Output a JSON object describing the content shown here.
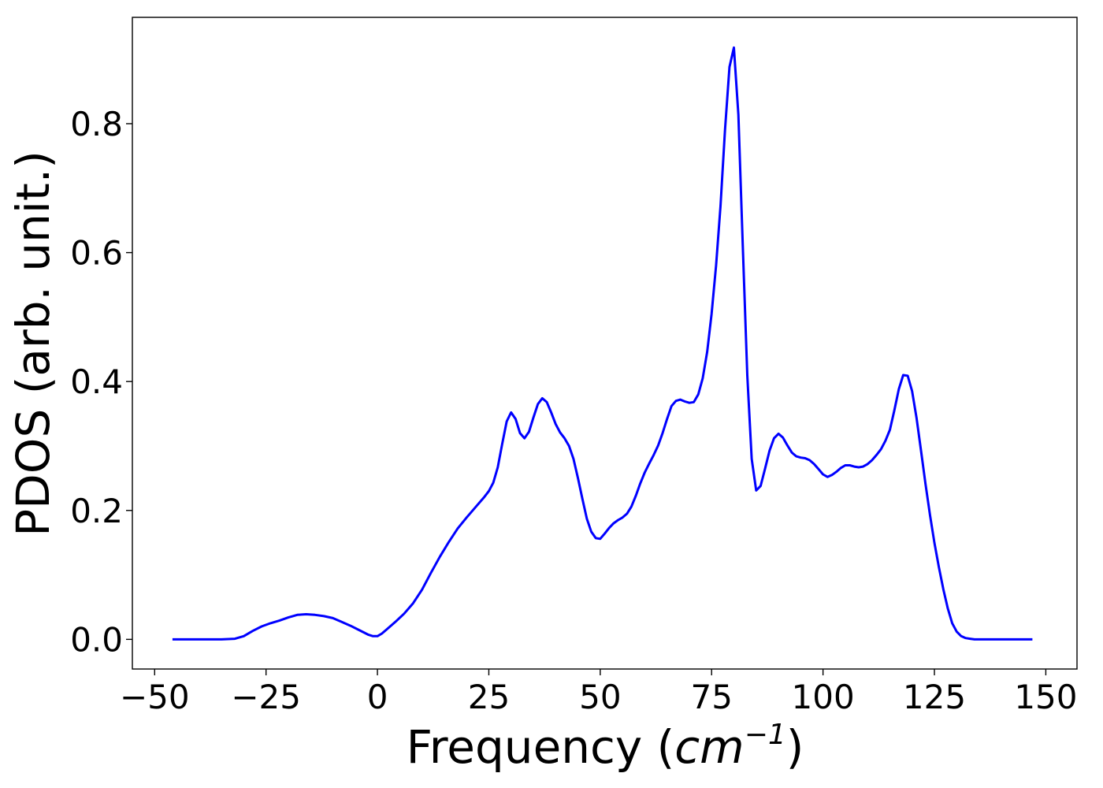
{
  "chart_data": {
    "type": "line",
    "title": "",
    "xlabel": "Frequency (",
    "xlabel_math": "cm",
    "xlabel_sup": "−1",
    "xlabel_end": ")",
    "ylabel": "PDOS (arb. unit.)",
    "xlim": [
      -55,
      157
    ],
    "ylim": [
      -0.046,
      0.965
    ],
    "xticks": [
      -50,
      -25,
      0,
      25,
      50,
      75,
      100,
      125,
      150
    ],
    "xtick_labels": [
      "−50",
      "−25",
      "0",
      "25",
      "50",
      "75",
      "100",
      "125",
      "150"
    ],
    "yticks": [
      0.0,
      0.2,
      0.4,
      0.6,
      0.8
    ],
    "ytick_labels": [
      "0.0",
      "0.2",
      "0.4",
      "0.6",
      "0.8"
    ],
    "grid": false,
    "series": [
      {
        "color": "#0000ff",
        "x": [
          -46,
          -40,
          -35,
          -32,
          -30,
          -28,
          -26,
          -24,
          -22,
          -20,
          -18,
          -16,
          -14,
          -12,
          -10,
          -8,
          -6,
          -4,
          -2,
          -1,
          0,
          1,
          2,
          4,
          6,
          8,
          10,
          12,
          14,
          16,
          18,
          20,
          22,
          24,
          25,
          26,
          27,
          28,
          29,
          30,
          31,
          32,
          33,
          34,
          35,
          36,
          37,
          38,
          39,
          40,
          41,
          42,
          43,
          44,
          45,
          46,
          47,
          48,
          49,
          50,
          51,
          52,
          53,
          54,
          55,
          56,
          57,
          58,
          59,
          60,
          61,
          62,
          63,
          64,
          65,
          66,
          67,
          68,
          69,
          70,
          71,
          72,
          73,
          74,
          75,
          76,
          77,
          78,
          79,
          80,
          81,
          82,
          83,
          84,
          85,
          86,
          87,
          88,
          89,
          90,
          91,
          92,
          93,
          94,
          95,
          96,
          97,
          98,
          99,
          100,
          101,
          102,
          103,
          104,
          105,
          106,
          107,
          108,
          109,
          110,
          111,
          112,
          113,
          114,
          115,
          116,
          117,
          118,
          119,
          120,
          121,
          122,
          123,
          124,
          125,
          126,
          127,
          128,
          129,
          130,
          131,
          132,
          133,
          134,
          135,
          140,
          147
        ],
        "y": [
          0.0,
          0.0,
          0.0,
          0.001,
          0.005,
          0.013,
          0.02,
          0.025,
          0.029,
          0.034,
          0.038,
          0.039,
          0.038,
          0.036,
          0.033,
          0.027,
          0.021,
          0.014,
          0.007,
          0.005,
          0.005,
          0.009,
          0.015,
          0.027,
          0.04,
          0.056,
          0.077,
          0.103,
          0.128,
          0.151,
          0.172,
          0.189,
          0.205,
          0.221,
          0.23,
          0.243,
          0.267,
          0.303,
          0.338,
          0.352,
          0.342,
          0.32,
          0.312,
          0.322,
          0.344,
          0.365,
          0.374,
          0.368,
          0.352,
          0.334,
          0.321,
          0.312,
          0.3,
          0.28,
          0.25,
          0.218,
          0.187,
          0.167,
          0.157,
          0.156,
          0.164,
          0.173,
          0.18,
          0.185,
          0.189,
          0.195,
          0.206,
          0.223,
          0.242,
          0.259,
          0.273,
          0.286,
          0.301,
          0.32,
          0.342,
          0.362,
          0.37,
          0.372,
          0.369,
          0.367,
          0.368,
          0.38,
          0.405,
          0.446,
          0.505,
          0.58,
          0.672,
          0.79,
          0.888,
          0.918,
          0.814,
          0.61,
          0.41,
          0.28,
          0.231,
          0.238,
          0.265,
          0.293,
          0.312,
          0.319,
          0.313,
          0.301,
          0.29,
          0.284,
          0.282,
          0.281,
          0.278,
          0.272,
          0.264,
          0.256,
          0.252,
          0.255,
          0.26,
          0.266,
          0.27,
          0.27,
          0.268,
          0.267,
          0.268,
          0.272,
          0.278,
          0.286,
          0.295,
          0.308,
          0.325,
          0.355,
          0.388,
          0.41,
          0.409,
          0.385,
          0.343,
          0.292,
          0.241,
          0.193,
          0.15,
          0.112,
          0.078,
          0.048,
          0.025,
          0.012,
          0.005,
          0.002,
          0.001,
          0.0,
          0.0,
          0.0,
          0.0
        ]
      }
    ]
  }
}
